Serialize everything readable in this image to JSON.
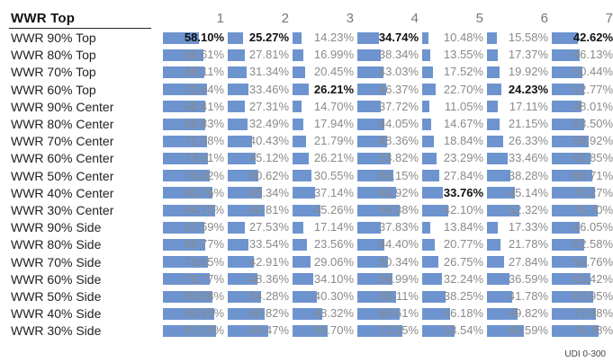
{
  "chart_data": {
    "type": "table",
    "corner_label": "WWR Top",
    "columns": [
      "1",
      "2",
      "3",
      "4",
      "5",
      "6",
      "7"
    ],
    "rows": [
      {
        "label": "WWR 90% Top",
        "values": [
          58.1,
          25.27,
          14.23,
          34.74,
          10.48,
          15.58,
          42.62
        ],
        "bold": [
          0,
          1,
          3,
          6
        ]
      },
      {
        "label": "WWR 80% Top",
        "values": [
          66.61,
          27.81,
          16.99,
          38.34,
          13.55,
          17.37,
          46.13
        ],
        "bold": []
      },
      {
        "label": "WWR 70% Top",
        "values": [
          68.11,
          31.34,
          20.45,
          43.03,
          17.52,
          19.92,
          50.44
        ],
        "bold": []
      },
      {
        "label": "WWR 60% Top",
        "values": [
          72.64,
          33.46,
          26.21,
          46.37,
          22.7,
          24.23,
          52.77
        ],
        "bold": [
          2,
          5
        ]
      },
      {
        "label": "WWR 90% Center",
        "values": [
          68.41,
          27.31,
          14.7,
          37.72,
          11.05,
          17.11,
          48.01
        ],
        "bold": []
      },
      {
        "label": "WWR 80% Center",
        "values": [
          69.83,
          32.49,
          17.94,
          44.05,
          14.67,
          21.15,
          53.5
        ],
        "bold": []
      },
      {
        "label": "WWR 70% Center",
        "values": [
          71.38,
          40.43,
          21.79,
          48.36,
          18.84,
          26.33,
          59.92
        ],
        "bold": []
      },
      {
        "label": "WWR 60% Center",
        "values": [
          73.91,
          45.12,
          26.21,
          53.82,
          23.29,
          33.46,
          62.85
        ],
        "bold": []
      },
      {
        "label": "WWR 50% Center",
        "values": [
          76.92,
          50.62,
          30.55,
          58.15,
          27.84,
          38.28,
          66.71
        ],
        "bold": []
      },
      {
        "label": "WWR 40% Center",
        "values": [
          80.76,
          55.34,
          37.14,
          63.92,
          33.76,
          45.14,
          70.27
        ],
        "bold": [
          4
        ]
      },
      {
        "label": "WWR 30% Center",
        "values": [
          84.72,
          60.81,
          45.26,
          69.38,
          42.1,
          52.32,
          75.7
        ],
        "bold": []
      },
      {
        "label": "WWR 90% Side",
        "values": [
          67.59,
          27.53,
          17.14,
          37.83,
          13.84,
          17.33,
          46.05
        ],
        "bold": []
      },
      {
        "label": "WWR 80% Side",
        "values": [
          69.77,
          33.54,
          23.56,
          44.4,
          20.77,
          21.78,
          52.58
        ],
        "bold": []
      },
      {
        "label": "WWR 70% Side",
        "values": [
          73.65,
          42.91,
          29.06,
          50.34,
          26.75,
          27.84,
          56.76
        ],
        "bold": []
      },
      {
        "label": "WWR 60% Side",
        "values": [
          76.77,
          48.36,
          34.1,
          56.99,
          32.24,
          36.59,
          63.42
        ],
        "bold": []
      },
      {
        "label": "WWR 50% Side",
        "values": [
          80.88,
          54.28,
          40.3,
          63.11,
          38.25,
          41.78,
          67.95
        ],
        "bold": []
      },
      {
        "label": "WWR 40% Side",
        "values": [
          83.95,
          60.82,
          48.32,
          68.61,
          46.18,
          49.82,
          71.88
        ],
        "bold": []
      },
      {
        "label": "WWR 30% Side",
        "values": [
          87.25,
          66.47,
          56.7,
          72.95,
          53.54,
          60.59,
          76.78
        ],
        "bold": []
      }
    ],
    "value_suffix": "%",
    "bar_scale_max": 100,
    "bar_color": "#6e94cf"
  },
  "footnote": "UDI 0-300"
}
